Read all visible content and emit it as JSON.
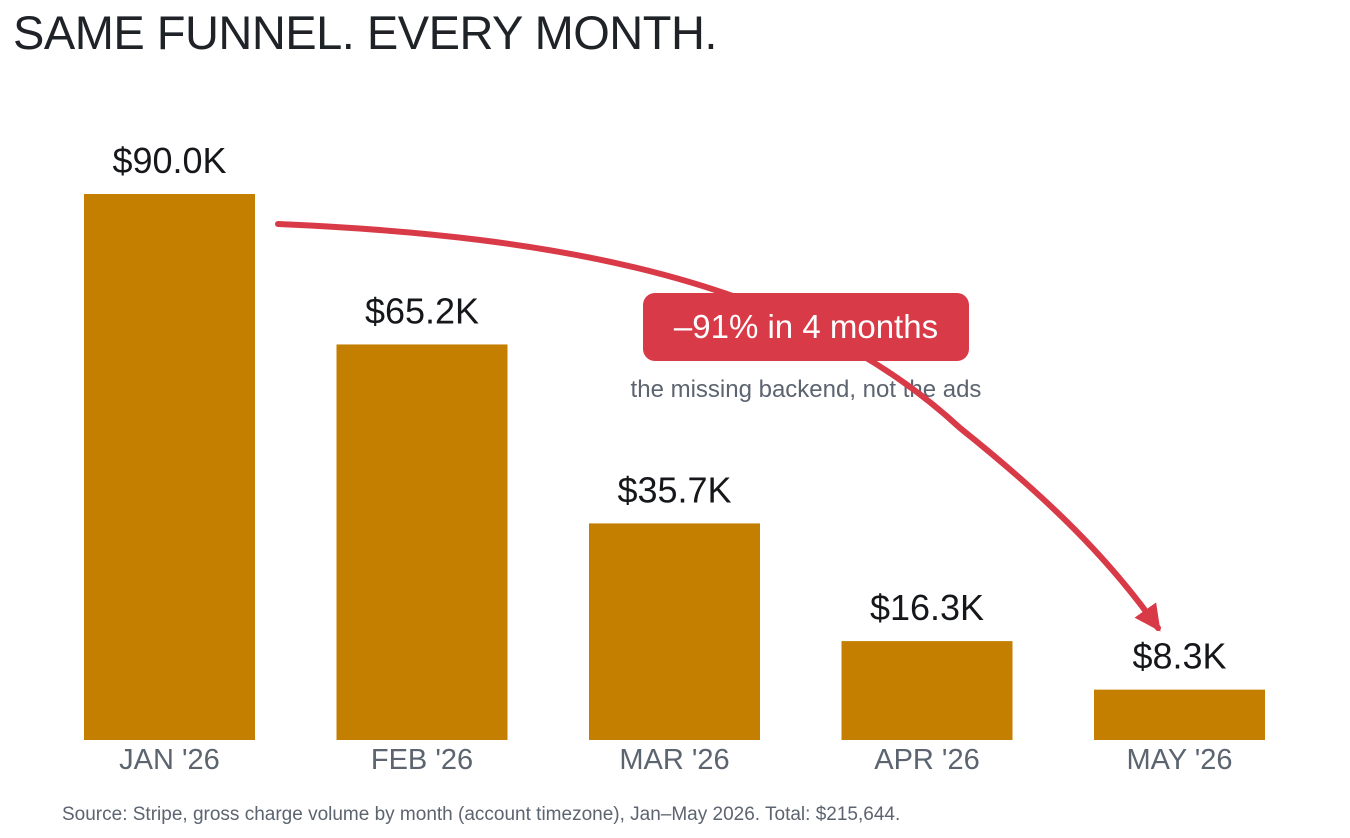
{
  "title": "SAME FUNNEL. EVERY MONTH.",
  "source": "Source: Stripe, gross charge volume by month (account timezone), Jan–May 2026. Total: $215,644.",
  "colors": {
    "bar": "#c47f00",
    "annotation": "#d93a47",
    "value_label": "#15171a",
    "axis_label": "#5c6470",
    "subnote": "#5c6470",
    "title": "#1f2328"
  },
  "chart_data": {
    "type": "bar",
    "title": "SAME FUNNEL. EVERY MONTH.",
    "xlabel": "",
    "ylabel": "",
    "grid": false,
    "legend": "none",
    "categories": [
      "JAN '26",
      "FEB '26",
      "MAR '26",
      "APR '26",
      "MAY '26"
    ],
    "values": [
      90.0,
      65.2,
      35.7,
      16.3,
      8.3
    ],
    "value_labels": [
      "$90.0K",
      "$65.2K",
      "$35.7K",
      "$16.3K",
      "$8.3K"
    ],
    "ylim": [
      0,
      90
    ],
    "annotation": {
      "label": "–91% in 4 months",
      "subnote": "the missing backend, not the ads",
      "from_category": "JAN '26",
      "to_category": "MAY '26"
    }
  }
}
